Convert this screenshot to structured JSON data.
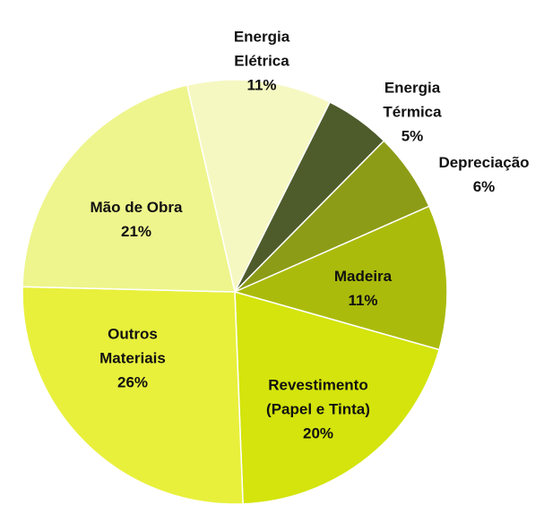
{
  "chart_data": {
    "type": "pie",
    "categories": [
      "Energia Elétrica",
      "Energia Térmica",
      "Depreciação",
      "Madeira",
      "Revestimento (Papel e Tinta)",
      "Outros Materiais",
      "Mão de Obra"
    ],
    "values": [
      11,
      5,
      6,
      11,
      20,
      26,
      21
    ],
    "value_labels": [
      "11%",
      "5%",
      "6%",
      "11%",
      "20%",
      "26%",
      "21%"
    ],
    "colors": [
      "#f6f8c2",
      "#4e5b2b",
      "#8d9c16",
      "#abbb0c",
      "#d4e40c",
      "#e8f03c",
      "#eef58c"
    ]
  }
}
